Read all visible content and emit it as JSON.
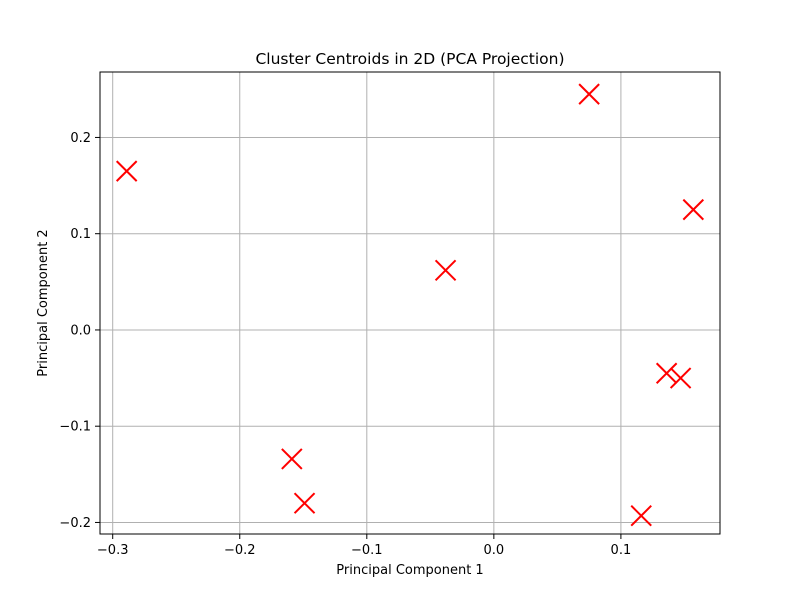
{
  "chart_data": {
    "type": "scatter",
    "title": "Cluster Centroids in 2D (PCA Projection)",
    "xlabel": "Principal Component 1",
    "ylabel": "Principal Component 2",
    "xlim": [
      -0.31,
      0.178
    ],
    "ylim": [
      -0.212,
      0.268
    ],
    "xticks": [
      -0.3,
      -0.2,
      -0.1,
      0.0,
      0.1
    ],
    "xtick_labels": [
      "−0.3",
      "−0.2",
      "−0.1",
      "0.0",
      "0.1"
    ],
    "yticks": [
      -0.2,
      -0.1,
      0.0,
      0.1,
      0.2
    ],
    "ytick_labels": [
      "−0.2",
      "−0.1",
      "0.0",
      "0.1",
      "0.2"
    ],
    "grid": true,
    "marker": "x",
    "marker_color": "#ff0000",
    "series": [
      {
        "points": [
          {
            "x": -0.289,
            "y": 0.165
          },
          {
            "x": 0.075,
            "y": 0.245
          },
          {
            "x": 0.157,
            "y": 0.125
          },
          {
            "x": -0.038,
            "y": 0.062
          },
          {
            "x": 0.136,
            "y": -0.045
          },
          {
            "x": 0.147,
            "y": -0.05
          },
          {
            "x": -0.159,
            "y": -0.134
          },
          {
            "x": -0.149,
            "y": -0.18
          },
          {
            "x": 0.116,
            "y": -0.193
          }
        ]
      }
    ]
  }
}
